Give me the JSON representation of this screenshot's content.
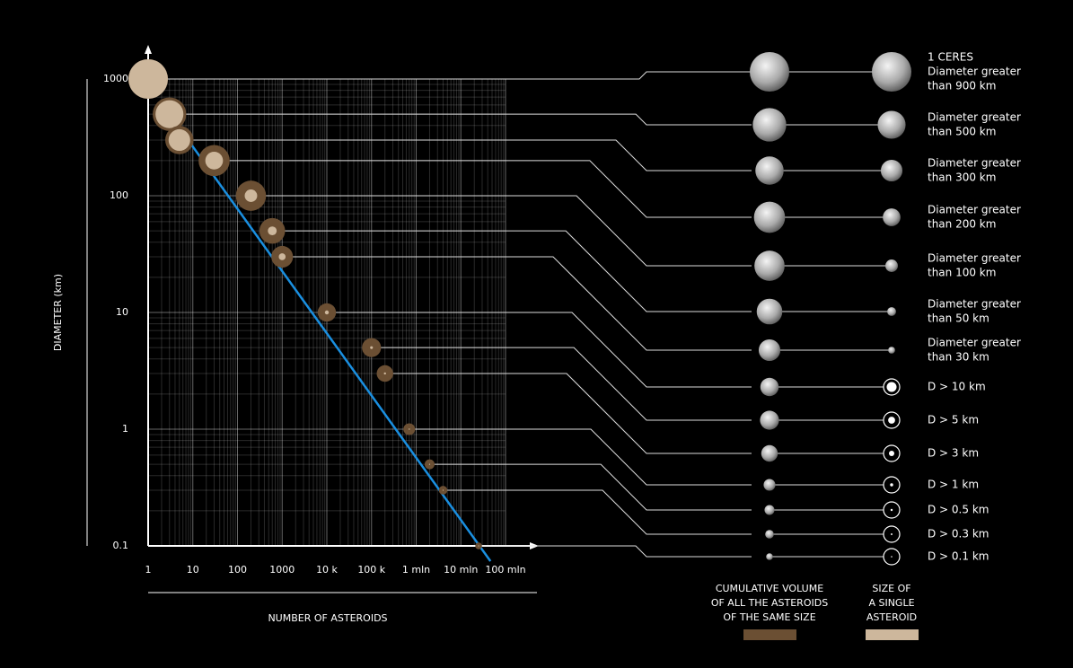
{
  "chart_data": {
    "type": "bubble",
    "x_label": "NUMBER OF ASTEROIDS",
    "y_label": "DIAMETER (km)",
    "log_x": true,
    "log_y": true,
    "grid": true,
    "xlim": [
      1,
      100000000
    ],
    "ylim": [
      0.1,
      1000
    ],
    "xticks": [
      1,
      10,
      100,
      1000,
      {
        "value": 10000,
        "label": "10 k"
      },
      {
        "value": 100000,
        "label": "100 k"
      },
      {
        "value": 1000000,
        "label": "1 mln"
      },
      {
        "value": 10000000,
        "label": "10 mln"
      },
      {
        "value": 100000000,
        "label": "100 mln"
      }
    ],
    "yticks": [
      0.1,
      1,
      10,
      100,
      1000
    ],
    "x": [
      1,
      3,
      5,
      30,
      200,
      600,
      1000,
      10000,
      100000,
      200000,
      700000,
      2000000,
      4000000,
      25000000
    ],
    "y": [
      1000,
      500,
      300,
      200,
      100,
      50,
      30,
      10,
      5,
      3,
      1,
      0.5,
      0.3,
      0.1
    ],
    "trend": {
      "color": "#1a8fe0",
      "x": [
        3,
        46000000
      ],
      "y": [
        500,
        0.074
      ]
    },
    "labels": [
      [
        "1 CERES",
        "Diameter greater",
        "than 900 km"
      ],
      [
        "Diameter greater",
        "than 500 km"
      ],
      [
        "Diameter greater",
        "than 300 km"
      ],
      [
        "Diameter greater",
        "than 200 km"
      ],
      [
        "Diameter greater",
        "than 100 km"
      ],
      [
        "Diameter greater",
        "than 50 km"
      ],
      [
        "Diameter greater",
        "than 30 km"
      ],
      [
        "D > 10 km"
      ],
      [
        "D > 5 km"
      ],
      [
        "D > 3 km"
      ],
      [
        "D > 1 km"
      ],
      [
        "D > 0.5 km"
      ],
      [
        "D > 0.3 km"
      ],
      [
        "D > 0.1 km"
      ]
    ],
    "legend": [
      {
        "label": [
          "CUMULATIVE VOLUME",
          "OF ALL THE ASTEROIDS",
          "OF THE SAME SIZE"
        ],
        "color": "#6b4f33"
      },
      {
        "label": [
          "SIZE OF",
          "A SINGLE",
          "ASTEROID"
        ],
        "color": "#cdb79c"
      }
    ]
  }
}
